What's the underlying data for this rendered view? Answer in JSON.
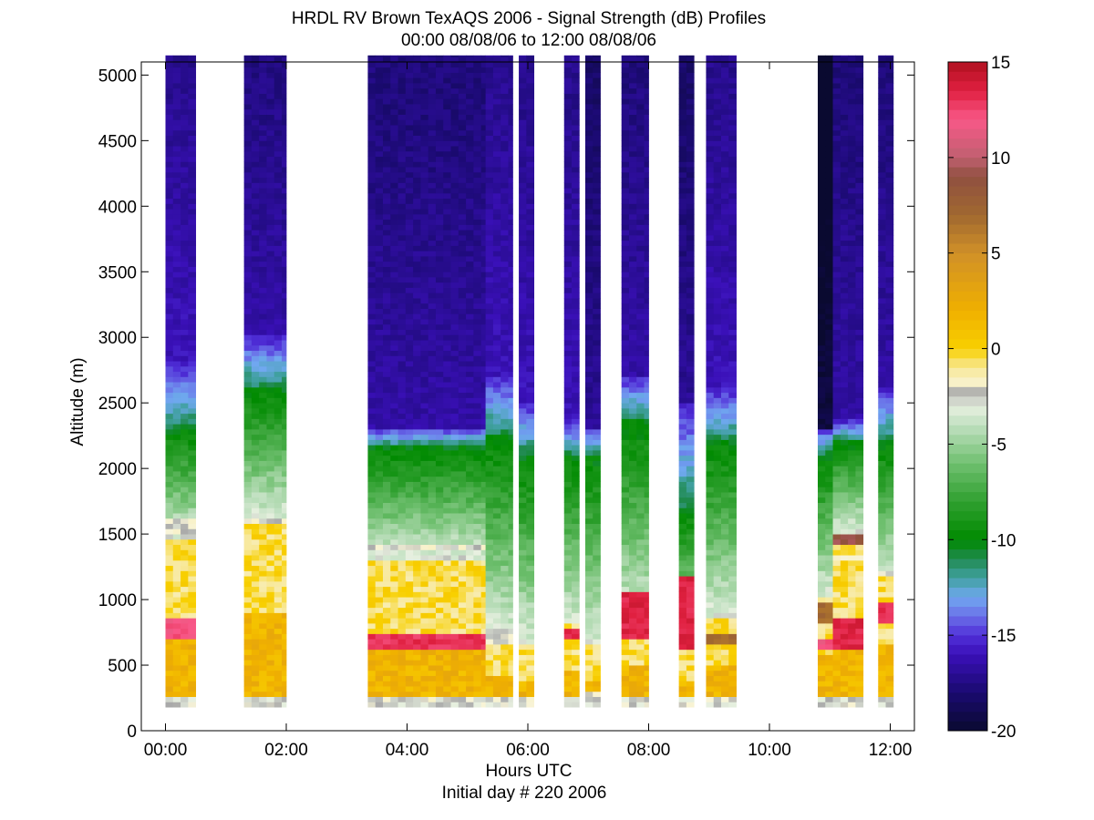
{
  "chart_data": {
    "type": "heatmap",
    "title": "HRDL RV Brown TexAQS 2006 - Signal Strength (dB) Profiles",
    "subtitle": "00:00 08/08/06 to 12:00 08/08/06",
    "xlabel": "Hours UTC",
    "xlabel_sub": "Initial day # 220  2006",
    "ylabel": "Altitude (m)",
    "xlim_hours": [
      -0.4,
      12.4
    ],
    "ylim": [
      0,
      5100
    ],
    "x_ticks": [
      {
        "value": 0,
        "label": "00:00"
      },
      {
        "value": 2,
        "label": "02:00"
      },
      {
        "value": 4,
        "label": "04:00"
      },
      {
        "value": 6,
        "label": "06:00"
      },
      {
        "value": 8,
        "label": "08:00"
      },
      {
        "value": 10,
        "label": "10:00"
      },
      {
        "value": 12,
        "label": "12:00"
      }
    ],
    "y_ticks": [
      0,
      500,
      1000,
      1500,
      2000,
      2500,
      3000,
      3500,
      4000,
      4500,
      5000
    ],
    "colorbar": {
      "range": [
        -20,
        15
      ],
      "ticks": [
        -20,
        -15,
        -10,
        -5,
        0,
        5,
        10,
        15
      ],
      "colors": [
        {
          "value": -20,
          "color": "#0a0a30"
        },
        {
          "value": -18,
          "color": "#1a0a70"
        },
        {
          "value": -16,
          "color": "#3a10b8"
        },
        {
          "value": -15,
          "color": "#5030d8"
        },
        {
          "value": -14,
          "color": "#6a70e8"
        },
        {
          "value": -13,
          "color": "#70a8f0"
        },
        {
          "value": -12,
          "color": "#40a0a0"
        },
        {
          "value": -11,
          "color": "#208a50"
        },
        {
          "value": -10,
          "color": "#008a00"
        },
        {
          "value": -8,
          "color": "#30a030"
        },
        {
          "value": -6,
          "color": "#70c070"
        },
        {
          "value": -4,
          "color": "#c0e0c0"
        },
        {
          "value": -3,
          "color": "#e8f0e0"
        },
        {
          "value": -2.3,
          "color": "#a8a8a8"
        },
        {
          "value": -2,
          "color": "#f8f4d8"
        },
        {
          "value": -1,
          "color": "#f8e898"
        },
        {
          "value": 0,
          "color": "#f8d000"
        },
        {
          "value": 2,
          "color": "#f0b000"
        },
        {
          "value": 5,
          "color": "#d09028"
        },
        {
          "value": 7,
          "color": "#a06830"
        },
        {
          "value": 9,
          "color": "#905040"
        },
        {
          "value": 10,
          "color": "#c06070"
        },
        {
          "value": 12,
          "color": "#f85888"
        },
        {
          "value": 13.5,
          "color": "#e02040"
        },
        {
          "value": 15,
          "color": "#b01020"
        }
      ]
    },
    "data_bottom_m": 180,
    "profiles": [
      {
        "start": 0.0,
        "end": 0.5,
        "top": 5150,
        "bl_top": 1450,
        "mix_top": 2300,
        "blue_top": 2800,
        "deep": -16,
        "spots": [
          {
            "lo": 700,
            "hi": 850,
            "value": 12
          },
          {
            "lo": 1480,
            "hi": 1600,
            "value": -2.3
          }
        ]
      },
      {
        "start": 1.3,
        "end": 2.0,
        "top": 5150,
        "bl_top": 1600,
        "mix_top": 2600,
        "blue_top": 3000,
        "deep": -16.5,
        "spots": [
          {
            "lo": 1580,
            "hi": 1620,
            "value": -2.3
          }
        ]
      },
      {
        "start": 3.35,
        "end": 5.3,
        "top": 5150,
        "bl_top": 1300,
        "mix_top": 2150,
        "blue_top": 2300,
        "deep": -16.5,
        "spots": [
          {
            "lo": 610,
            "hi": 720,
            "value": 13
          },
          {
            "lo": 1370,
            "hi": 1420,
            "value": -2.3
          },
          {
            "lo": 200,
            "hi": 240,
            "value": -2.3
          }
        ]
      },
      {
        "start": 5.3,
        "end": 5.75,
        "top": 5150,
        "bl_top": 700,
        "mix_top": 2250,
        "blue_top": 2700,
        "deep": -16,
        "spots": [
          {
            "lo": 650,
            "hi": 760,
            "value": -2.3
          }
        ]
      },
      {
        "start": 5.85,
        "end": 6.1,
        "top": 5150,
        "bl_top": 650,
        "mix_top": 2100,
        "blue_top": 2500,
        "deep": -16,
        "spots": [
          {
            "lo": 220,
            "hi": 260,
            "value": -2.3
          }
        ]
      },
      {
        "start": 6.6,
        "end": 6.85,
        "top": 5150,
        "bl_top": 800,
        "mix_top": 2100,
        "blue_top": 2350,
        "deep": -16,
        "spots": [
          {
            "lo": 700,
            "hi": 780,
            "value": 13.5
          }
        ]
      },
      {
        "start": 6.95,
        "end": 7.2,
        "top": 5150,
        "bl_top": 650,
        "mix_top": 2100,
        "blue_top": 2300,
        "deep": -17,
        "spots": [
          {
            "lo": 260,
            "hi": 300,
            "value": -2.3
          }
        ]
      },
      {
        "start": 7.55,
        "end": 8.0,
        "top": 5150,
        "bl_top": 850,
        "mix_top": 2350,
        "blue_top": 2700,
        "deep": -16.5,
        "spots": [
          {
            "lo": 700,
            "hi": 1050,
            "value": 13.5
          }
        ]
      },
      {
        "start": 8.5,
        "end": 8.75,
        "top": 5150,
        "bl_top": 650,
        "mix_top": 1700,
        "blue_top": 2500,
        "deep": -17,
        "spots": [
          {
            "lo": 620,
            "hi": 1150,
            "value": 13.5
          }
        ]
      },
      {
        "start": 8.95,
        "end": 9.45,
        "top": 5150,
        "bl_top": 850,
        "mix_top": 2200,
        "blue_top": 2600,
        "deep": -16,
        "spots": [
          {
            "lo": 650,
            "hi": 720,
            "value": 7
          }
        ]
      },
      {
        "start": 10.8,
        "end": 11.05,
        "top": 5150,
        "bl_top": 1000,
        "mix_top": 2100,
        "blue_top": 2300,
        "deep": -19.5,
        "spots": [
          {
            "lo": 600,
            "hi": 700,
            "value": 12
          },
          {
            "lo": 800,
            "hi": 950,
            "value": 7
          }
        ]
      },
      {
        "start": 11.05,
        "end": 11.55,
        "top": 5150,
        "bl_top": 1500,
        "mix_top": 2200,
        "blue_top": 2350,
        "deep": -16.5,
        "spots": [
          {
            "lo": 600,
            "hi": 750,
            "value": 13.5
          },
          {
            "lo": 750,
            "hi": 850,
            "value": 13.5
          },
          {
            "lo": 1400,
            "hi": 1500,
            "value": 9
          },
          {
            "lo": 1280,
            "hi": 1320,
            "value": -2.3
          }
        ]
      },
      {
        "start": 11.8,
        "end": 12.05,
        "top": 5150,
        "bl_top": 1150,
        "mix_top": 2200,
        "blue_top": 2600,
        "deep": -16.5,
        "spots": [
          {
            "lo": 800,
            "hi": 950,
            "value": 13
          },
          {
            "lo": 1180,
            "hi": 1220,
            "value": -2.3
          }
        ]
      }
    ]
  }
}
